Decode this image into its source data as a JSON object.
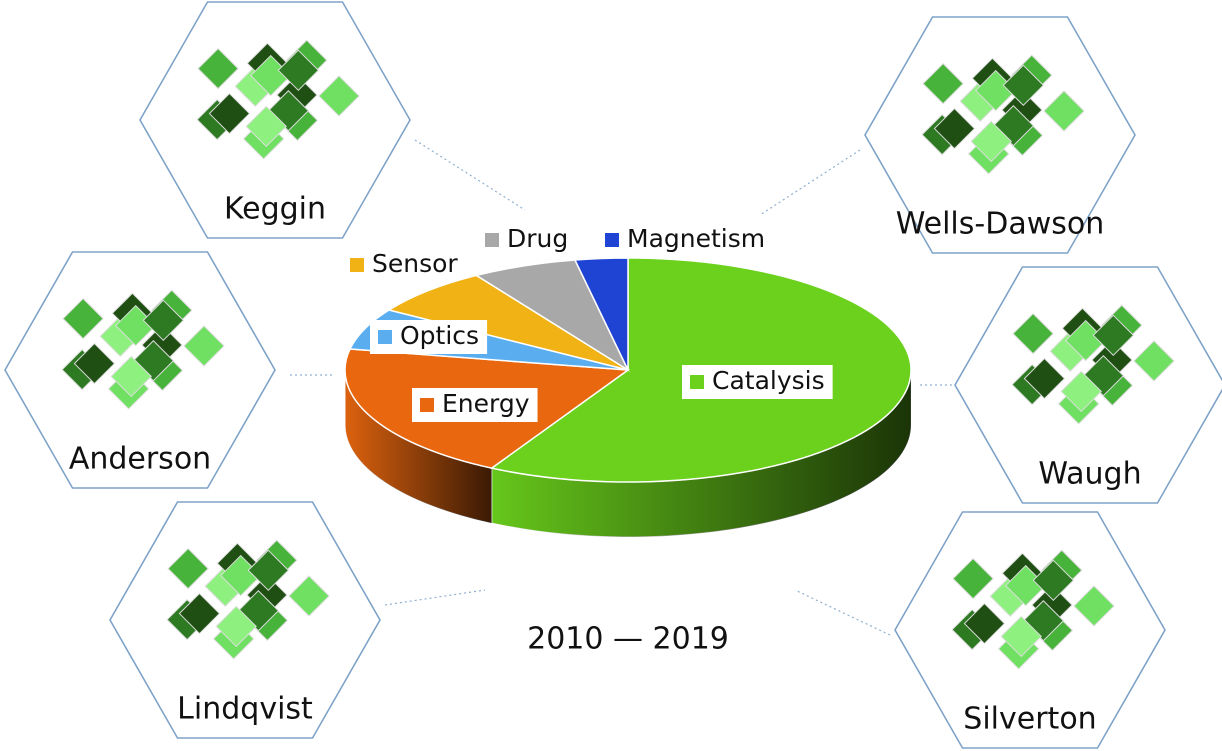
{
  "chart_data": {
    "type": "pie",
    "title": "2010 — 2019",
    "categories": [
      "Catalysis",
      "Energy",
      "Optics",
      "Sensor",
      "Drug",
      "Magnetism"
    ],
    "values": [
      58,
      20,
      6,
      7,
      6,
      3
    ],
    "colors": [
      "#6bd11c",
      "#e8670f",
      "#5aaef0",
      "#f0b214",
      "#a8a8a8",
      "#1f44d4"
    ]
  },
  "structures": [
    "Keggin",
    "Wells-Dawson",
    "Anderson",
    "Waugh",
    "Lindqvist",
    "Silverton"
  ]
}
